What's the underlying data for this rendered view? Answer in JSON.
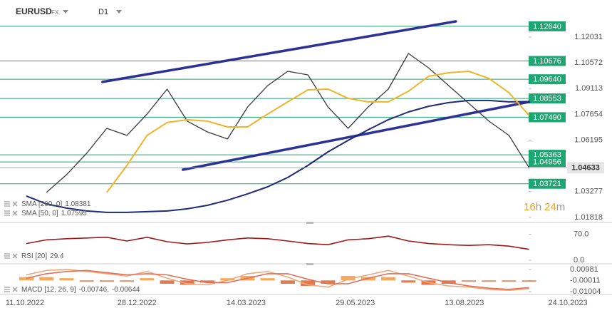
{
  "header": {
    "symbol": "EURUSD",
    "market": "FX",
    "timeframe": "D1"
  },
  "chart_data": [
    {
      "type": "line",
      "x": [
        "12.10.2022",
        "26.10.2022",
        "09.11.2022",
        "23.11.2022",
        "07.12.2022",
        "21.12.2022",
        "04.01.2023",
        "18.01.2023",
        "01.02.2023",
        "15.02.2023",
        "01.03.2023",
        "15.03.2023",
        "29.03.2023",
        "12.04.2023",
        "26.04.2023",
        "10.05.2023",
        "24.05.2023",
        "07.06.2023",
        "21.06.2023",
        "05.07.2023",
        "19.07.2023",
        "02.08.2023",
        "16.08.2023",
        "30.08.2023",
        "13.09.2023",
        "27.09.2023"
      ],
      "series": [
        {
          "color": "#3a3a3a",
          "values": [
            null,
            1.0323,
            1.0424,
            1.0545,
            1.0686,
            1.0646,
            1.0767,
            1.0908,
            1.0727,
            1.0666,
            1.0626,
            1.0807,
            1.0928,
            1.1009,
            1.0989,
            1.0807,
            1.0686,
            1.0807,
            1.0908,
            1.111,
            1.1029,
            1.0928,
            1.0828,
            1.0727,
            1.0646,
            1.04633
          ]
        },
        {
          "name": "SMA [200, 0]",
          "color": "#1f2a7a",
          "values": [
            1.0303,
            1.0258,
            1.0234,
            1.0218,
            1.021,
            1.021,
            1.0214,
            1.0218,
            1.023,
            1.025,
            1.0279,
            1.0315,
            1.0355,
            1.0408,
            1.0476,
            1.0553,
            1.0618,
            1.0678,
            1.0735,
            1.0779,
            1.0811,
            1.0832,
            1.0844,
            1.0844,
            1.0836,
            1.08381
          ]
        },
        {
          "name": "SMA [50, 0]",
          "color": "#f0b429",
          "values": [
            null,
            null,
            null,
            null,
            1.0323,
            1.0476,
            1.0646,
            1.0719,
            1.0735,
            1.0727,
            1.0694,
            1.0694,
            1.0767,
            1.0836,
            1.0904,
            1.0908,
            1.0856,
            1.0836,
            1.0836,
            1.0896,
            1.0981,
            1.1001,
            1.1009,
            1.0969,
            1.0888,
            1.07595
          ]
        }
      ],
      "trendlines": [
        {
          "color": "#2d3296",
          "x": [
            "04.12.2022",
            "07.08.2023"
          ],
          "values": [
            1.0949,
            1.1292
          ]
        },
        {
          "color": "#2d3296",
          "x": [
            "29.01.2023",
            "27.09.2023"
          ],
          "values": [
            1.0452,
            1.0836
          ]
        }
      ],
      "levels": [
        {
          "value": 1.1264,
          "label": "1.12640"
        },
        1.10676,
        {
          "value": 1.0964,
          "label": "1.09640"
        },
        1.08553,
        {
          "value": 1.0749,
          "label": "1.07490"
        },
        1.05363,
        1.04956,
        1.03721
      ],
      "level_color": "#1ea672",
      "ylim": [
        1.0153,
        1.1413
      ],
      "yticks": [
        1.12031,
        1.10572,
        1.09113,
        1.07654,
        1.06195,
        1.03277,
        1.01818
      ],
      "xticks": [
        "11.10.2022",
        "28.12.2022",
        "14.03.2023",
        "29.05.2023",
        "13.08.2023",
        "24.10.2023"
      ],
      "countdown": {
        "hours": 16,
        "hours_unit": "h",
        "minutes": 24,
        "minutes_unit": "m"
      }
    },
    {
      "type": "line",
      "x": [
        "12.10.2022",
        "26.10.2022",
        "09.11.2022",
        "23.11.2022",
        "07.12.2022",
        "21.12.2022",
        "04.01.2023",
        "18.01.2023",
        "01.02.2023",
        "15.02.2023",
        "01.03.2023",
        "15.03.2023",
        "29.03.2023",
        "12.04.2023",
        "26.04.2023",
        "10.05.2023",
        "24.05.2023",
        "07.06.2023",
        "21.06.2023",
        "05.07.2023",
        "19.07.2023",
        "02.08.2023",
        "16.08.2023",
        "30.08.2023",
        "13.09.2023",
        "27.09.2023"
      ],
      "series": [
        {
          "name": "RSI [20]",
          "color": "#a01818",
          "values": [
            45,
            55,
            58,
            60,
            62,
            52,
            62,
            50,
            44,
            48,
            55,
            60,
            58,
            52,
            45,
            42,
            55,
            58,
            65,
            52,
            45,
            42,
            40,
            42,
            38,
            29.4
          ]
        }
      ],
      "ylim": [
        0,
        100
      ],
      "yticks": [
        {
          "value": 70,
          "label": "70.0"
        },
        {
          "value": 0,
          "label": "0.0"
        }
      ]
    },
    {
      "type": "line",
      "x": [
        "12.10.2022",
        "26.10.2022",
        "09.11.2022",
        "23.11.2022",
        "07.12.2022",
        "21.12.2022",
        "04.01.2023",
        "18.01.2023",
        "01.02.2023",
        "15.02.2023",
        "01.03.2023",
        "15.03.2023",
        "29.03.2023",
        "12.04.2023",
        "26.04.2023",
        "10.05.2023",
        "24.05.2023",
        "07.06.2023",
        "21.06.2023",
        "05.07.2023",
        "19.07.2023",
        "02.08.2023",
        "16.08.2023",
        "30.08.2023",
        "13.09.2023",
        "27.09.2023"
      ],
      "name": "MACD [12, 26, 9]",
      "value_separator": ",",
      "series": [
        {
          "color": "#f0a878",
          "values": [
            0.005,
            0.009,
            0.01,
            0.008,
            0.006,
            0.004,
            0.008,
            0.002,
            -0.003,
            -0.004,
            0,
            0.006,
            0.008,
            0.003,
            -0.004,
            -0.006,
            0.001,
            0.005,
            0.009,
            0.004,
            -0.002,
            -0.005,
            -0.006,
            -0.008,
            -0.009,
            -0.00746
          ]
        },
        {
          "color": "#e0705a",
          "values": [
            0.002,
            0.006,
            0.008,
            0.009,
            0.007,
            0.005,
            0.006,
            0.005,
            0.001,
            -0.002,
            -0.002,
            0.002,
            0.006,
            0.006,
            0.001,
            -0.003,
            -0.003,
            0.002,
            0.006,
            0.006,
            0.002,
            -0.002,
            -0.005,
            -0.007,
            -0.008,
            -0.00644
          ]
        }
      ],
      "histogram": {
        "color_up": "#f5a04a",
        "color_down": "#e06a3c",
        "values": [
          0.003,
          0.003,
          0.002,
          -0.001,
          -0.001,
          -0.001,
          0.002,
          -0.003,
          -0.004,
          -0.002,
          0.002,
          0.004,
          0.002,
          -0.003,
          -0.005,
          -0.003,
          0.004,
          0.003,
          0.003,
          -0.002,
          -0.004,
          -0.003,
          -0.001,
          -0.001,
          -0.001,
          -0.00102
        ]
      },
      "ylim": [
        -0.012,
        0.0143
      ],
      "yticks": [
        0.00981,
        -0.00011,
        -0.01004
      ]
    }
  ]
}
